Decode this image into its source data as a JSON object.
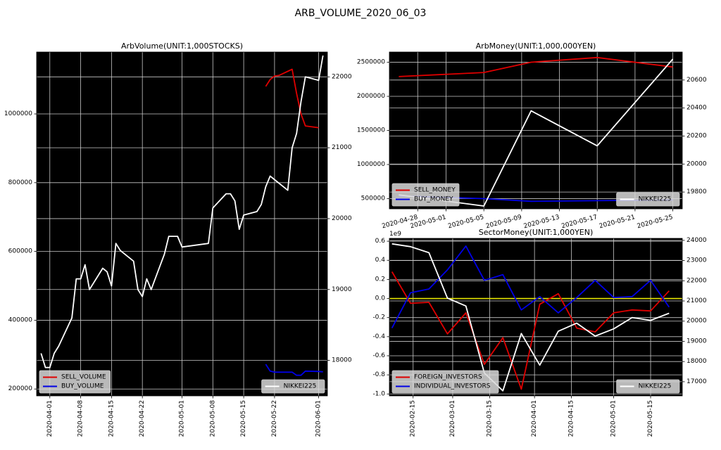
{
  "figure": {
    "title": "ARB_VOLUME_2020_06_03"
  },
  "colors": {
    "background": "#000000",
    "grid": "#c8c8c8",
    "sell": "#e00000",
    "buy": "#0000e6",
    "nikkei": "#ffffff",
    "zero_line": "#e6e600",
    "legend_bg": "#d9d9d9"
  },
  "chart_data": [
    {
      "id": "arb_volume",
      "type": "line",
      "title": "ArbVolume(UNIT:1,000STOCKS)",
      "xlim": [
        "2020-03-29",
        "2020-06-03"
      ],
      "x_ticks": [
        "2020-04-01",
        "2020-04-08",
        "2020-04-15",
        "2020-04-22",
        "2020-05-01",
        "2020-05-08",
        "2020-05-15",
        "2020-05-22",
        "2020-06-01"
      ],
      "ylim": [
        180000,
        1180000
      ],
      "y_ticks": [
        200000,
        400000,
        600000,
        800000,
        1000000
      ],
      "y2lim": [
        17500,
        22350
      ],
      "y2_ticks": [
        18000,
        19000,
        20000,
        21000,
        22000
      ],
      "legend_left": [
        "SELL_VOLUME",
        "BUY_VOLUME"
      ],
      "legend_right": [
        "NIKKEI225"
      ],
      "series": [
        {
          "name": "SELL_VOLUME",
          "axis": "left",
          "color": "sell",
          "x": [
            "2020-05-20",
            "2020-05-21",
            "2020-05-22",
            "2020-05-23",
            "2020-05-26",
            "2020-05-27",
            "2020-05-28",
            "2020-05-29",
            "2020-06-01"
          ],
          "y": [
            1080000,
            1100000,
            1110000,
            1112000,
            1130000,
            1060000,
            1000000,
            965000,
            960000
          ]
        },
        {
          "name": "BUY_VOLUME",
          "axis": "left",
          "color": "buy",
          "x": [
            "2020-05-20",
            "2020-05-21",
            "2020-05-22",
            "2020-05-25",
            "2020-05-26",
            "2020-05-27",
            "2020-05-28",
            "2020-05-29",
            "2020-06-01",
            "2020-06-02"
          ],
          "y": [
            272000,
            252000,
            249000,
            249000,
            249000,
            240000,
            240000,
            252000,
            251000,
            250000
          ]
        },
        {
          "name": "NIKKEI225",
          "axis": "right",
          "color": "nikkei",
          "x": [
            "2020-03-30",
            "2020-03-31",
            "2020-04-01",
            "2020-04-02",
            "2020-04-03",
            "2020-04-06",
            "2020-04-07",
            "2020-04-08",
            "2020-04-09",
            "2020-04-10",
            "2020-04-13",
            "2020-04-14",
            "2020-04-15",
            "2020-04-16",
            "2020-04-17",
            "2020-04-20",
            "2020-04-21",
            "2020-04-22",
            "2020-04-23",
            "2020-04-24",
            "2020-04-27",
            "2020-04-28",
            "2020-04-30",
            "2020-05-01",
            "2020-05-07",
            "2020-05-08",
            "2020-05-11",
            "2020-05-12",
            "2020-05-13",
            "2020-05-14",
            "2020-05-15",
            "2020-05-18",
            "2020-05-19",
            "2020-05-20",
            "2020-05-21",
            "2020-05-22",
            "2020-05-25",
            "2020-05-26",
            "2020-05-27",
            "2020-05-28",
            "2020-05-29",
            "2020-06-01",
            "2020-06-02"
          ],
          "y": [
            18100,
            17900,
            17900,
            18100,
            18200,
            18600,
            19150,
            19150,
            19350,
            19000,
            19300,
            19250,
            19050,
            19650,
            19550,
            19400,
            19000,
            18900,
            19150,
            19000,
            19500,
            19750,
            19750,
            19600,
            19650,
            20150,
            20350,
            20350,
            20250,
            19850,
            20050,
            20100,
            20200,
            20450,
            20600,
            20550,
            20400,
            21000,
            21200,
            21650,
            22000,
            21950,
            22300
          ]
        }
      ]
    },
    {
      "id": "arb_money",
      "type": "line",
      "title": "ArbMoney(UNIT:1,000,000YEN)",
      "xlim": [
        "2020-04-25",
        "2020-05-26"
      ],
      "x_ticks": [
        "2020-04-28",
        "2020-05-01",
        "2020-05-05",
        "2020-05-09",
        "2020-05-13",
        "2020-05-17",
        "2020-05-21",
        "2020-05-25"
      ],
      "ylim": [
        350000,
        2650000
      ],
      "y_ticks": [
        500000,
        1000000,
        1500000,
        2000000,
        2500000
      ],
      "y2lim": [
        19680,
        20800
      ],
      "y2_ticks": [
        19800,
        20000,
        20200,
        20400,
        20600
      ],
      "legend_left": [
        "SELL_MONEY",
        "BUY_MONEY"
      ],
      "legend_right": [
        "NIKKEI225"
      ],
      "series": [
        {
          "name": "SELL_MONEY",
          "axis": "left",
          "color": "sell",
          "x": [
            "2020-04-26",
            "2020-05-05",
            "2020-05-10",
            "2020-05-17",
            "2020-05-25"
          ],
          "y": [
            2290000,
            2350000,
            2500000,
            2570000,
            2430000
          ]
        },
        {
          "name": "BUY_MONEY",
          "axis": "left",
          "color": "buy",
          "x": [
            "2020-04-26",
            "2020-05-05",
            "2020-05-10",
            "2020-05-17",
            "2020-05-25"
          ],
          "y": [
            540000,
            500000,
            460000,
            470000,
            480000
          ]
        },
        {
          "name": "NIKKEI225",
          "axis": "right",
          "color": "nikkei",
          "x": [
            "2020-04-26",
            "2020-05-05",
            "2020-05-10",
            "2020-05-17",
            "2020-05-25"
          ],
          "y": [
            19780,
            19700,
            20380,
            20130,
            20750
          ]
        }
      ]
    },
    {
      "id": "sector_money",
      "type": "line",
      "title": "SectorMoney(UNIT:1,000YEN)",
      "xlim": [
        "2020-02-06",
        "2020-05-27"
      ],
      "x_ticks": [
        "2020-02-15",
        "2020-03-01",
        "2020-03-15",
        "2020-04-01",
        "2020-04-15",
        "2020-05-01",
        "2020-05-15"
      ],
      "y_scale_label": "1e9",
      "ylim": [
        -1.02,
        0.63
      ],
      "y_ticks": [
        "0.6",
        "0.4",
        "0.2",
        "0.0",
        "-0.2",
        "-0.4",
        "-0.6",
        "-0.8",
        "-1.0"
      ],
      "y2lim": [
        16300,
        24100
      ],
      "y2_ticks": [
        17000,
        18000,
        19000,
        20000,
        21000,
        22000,
        23000,
        24000
      ],
      "zero_line": 0,
      "legend_left": [
        "FOREIGN_INVESTORS",
        "INDIVIDUAL_INVESTORS"
      ],
      "legend_right": [
        "NIKKEI225"
      ],
      "series": [
        {
          "name": "FOREIGN_INVESTORS",
          "axis": "left",
          "color": "sell",
          "x": [
            "2020-02-07",
            "2020-02-14",
            "2020-02-21",
            "2020-02-28",
            "2020-03-06",
            "2020-03-13",
            "2020-03-20",
            "2020-03-27",
            "2020-04-03",
            "2020-04-10",
            "2020-04-17",
            "2020-04-24",
            "2020-05-01",
            "2020-05-08",
            "2020-05-15",
            "2020-05-22"
          ],
          "y": [
            0.28,
            -0.05,
            -0.04,
            -0.37,
            -0.15,
            -0.69,
            -0.41,
            -0.95,
            -0.06,
            0.05,
            -0.31,
            -0.35,
            -0.15,
            -0.12,
            -0.13,
            0.08
          ]
        },
        {
          "name": "INDIVIDUAL_INVESTORS",
          "axis": "left",
          "color": "buy",
          "x": [
            "2020-02-07",
            "2020-02-14",
            "2020-02-21",
            "2020-02-28",
            "2020-03-06",
            "2020-03-13",
            "2020-03-20",
            "2020-03-27",
            "2020-04-03",
            "2020-04-10",
            "2020-04-17",
            "2020-04-24",
            "2020-05-01",
            "2020-05-08",
            "2020-05-15",
            "2020-05-22"
          ],
          "y": [
            -0.31,
            0.06,
            0.1,
            0.3,
            0.55,
            0.19,
            0.25,
            -0.12,
            0.02,
            -0.15,
            0.01,
            0.19,
            0.01,
            0.02,
            0.19,
            -0.09
          ]
        },
        {
          "name": "NIKKEI225",
          "axis": "right",
          "color": "nikkei",
          "x": [
            "2020-02-07",
            "2020-02-14",
            "2020-02-21",
            "2020-02-28",
            "2020-03-06",
            "2020-03-13",
            "2020-03-20",
            "2020-03-27",
            "2020-04-03",
            "2020-04-10",
            "2020-04-17",
            "2020-04-24",
            "2020-05-01",
            "2020-05-08",
            "2020-05-15",
            "2020-05-22"
          ],
          "y": [
            23830,
            23690,
            23390,
            21140,
            20750,
            17430,
            16550,
            19390,
            17820,
            19500,
            19900,
            19260,
            19620,
            20180,
            20040,
            20390
          ]
        }
      ]
    }
  ]
}
